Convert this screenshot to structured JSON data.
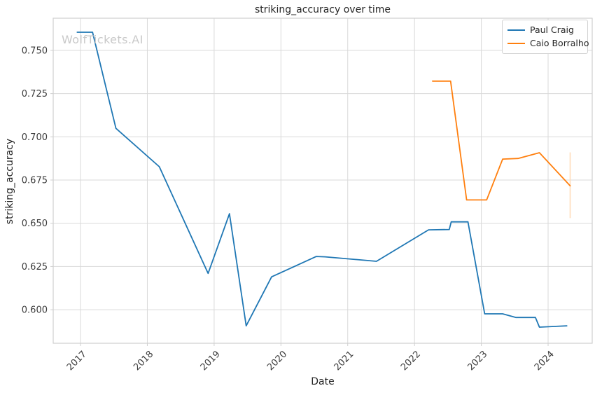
{
  "watermark": "WolfTickets.AI",
  "colors": {
    "background": "#ffffff",
    "grid": "#d9d9d9",
    "spine": "#cfcfcf",
    "tick_text": "#3b3b3b",
    "text": "#262626",
    "watermark": "#c9c9c9"
  },
  "chart_data": {
    "type": "line",
    "title": "striking_accuracy over time",
    "xlabel": "Date",
    "ylabel": "striking_accuracy",
    "grid": true,
    "legend_position": "upper right",
    "xlim": [
      2016.591,
      2024.66
    ],
    "ylim": [
      0.5806,
      0.7686
    ],
    "x_ticks": [
      2017,
      2018,
      2019,
      2020,
      2021,
      2022,
      2023,
      2024
    ],
    "y_ticks": [
      0.6,
      0.625,
      0.65,
      0.675,
      0.7,
      0.725,
      0.75
    ],
    "series": [
      {
        "name": "Paul Craig",
        "color": "#1f77b4",
        "x": [
          2016.95,
          2017.18,
          2017.53,
          2018.18,
          2018.91,
          2019.23,
          2019.48,
          2019.86,
          2020.53,
          2020.66,
          2021.43,
          2022.21,
          2022.52,
          2022.55,
          2022.8,
          2023.05,
          2023.32,
          2023.52,
          2023.81,
          2023.87,
          2024.28
        ],
        "y": [
          0.7605,
          0.7605,
          0.7049,
          0.6827,
          0.621,
          0.6555,
          0.5907,
          0.619,
          0.6308,
          0.6306,
          0.628,
          0.6462,
          0.6464,
          0.6508,
          0.6508,
          0.5976,
          0.5976,
          0.5955,
          0.5955,
          0.5899,
          0.5907
        ]
      },
      {
        "name": "Caio Borralho",
        "color": "#ff7f0e",
        "x": [
          2022.27,
          2022.54,
          2022.78,
          2023.08,
          2023.32,
          2023.55,
          2023.87,
          2024.33
        ],
        "y": [
          0.7322,
          0.7322,
          0.6635,
          0.6635,
          0.6871,
          0.6875,
          0.6908,
          0.6717
        ]
      }
    ],
    "error_bar": {
      "series": "Caio Borralho",
      "x": 2024.33,
      "y0": 0.653,
      "y1": 0.691,
      "color": "#ffdcb9"
    }
  }
}
